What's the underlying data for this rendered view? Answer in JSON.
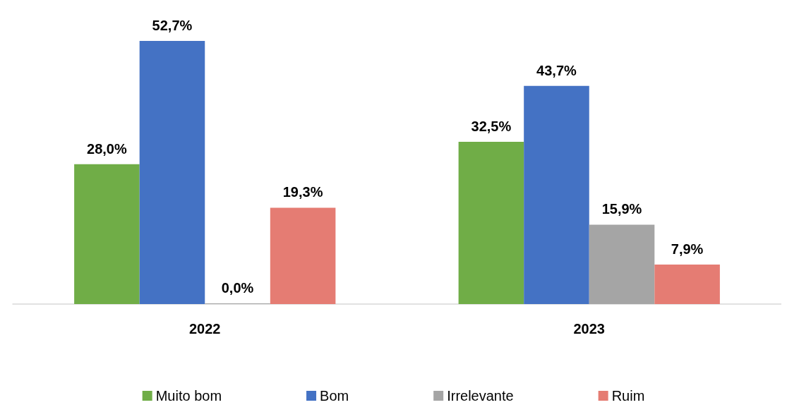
{
  "chart_data": {
    "type": "bar",
    "categories": [
      "2022",
      "2023"
    ],
    "legend": "bottom",
    "grid": false,
    "series": [
      {
        "name": "Muito bom",
        "color": "#70ad47",
        "values": [
          28.0,
          32.5
        ],
        "value_labels": [
          "28,0%",
          "32,5%"
        ]
      },
      {
        "name": "Bom",
        "color": "#4472c4",
        "values": [
          52.7,
          43.7
        ],
        "value_labels": [
          "52,7%",
          "43,7%"
        ]
      },
      {
        "name": "Irrelevante",
        "color": "#a5a5a5",
        "values": [
          0.0,
          15.9
        ],
        "value_labels": [
          "0,0%",
          "15,9%"
        ]
      },
      {
        "name": "Ruim",
        "color": "#e57c73",
        "values": [
          19.3,
          7.9
        ],
        "value_labels": [
          "19,3%",
          "7,9%"
        ]
      }
    ]
  }
}
